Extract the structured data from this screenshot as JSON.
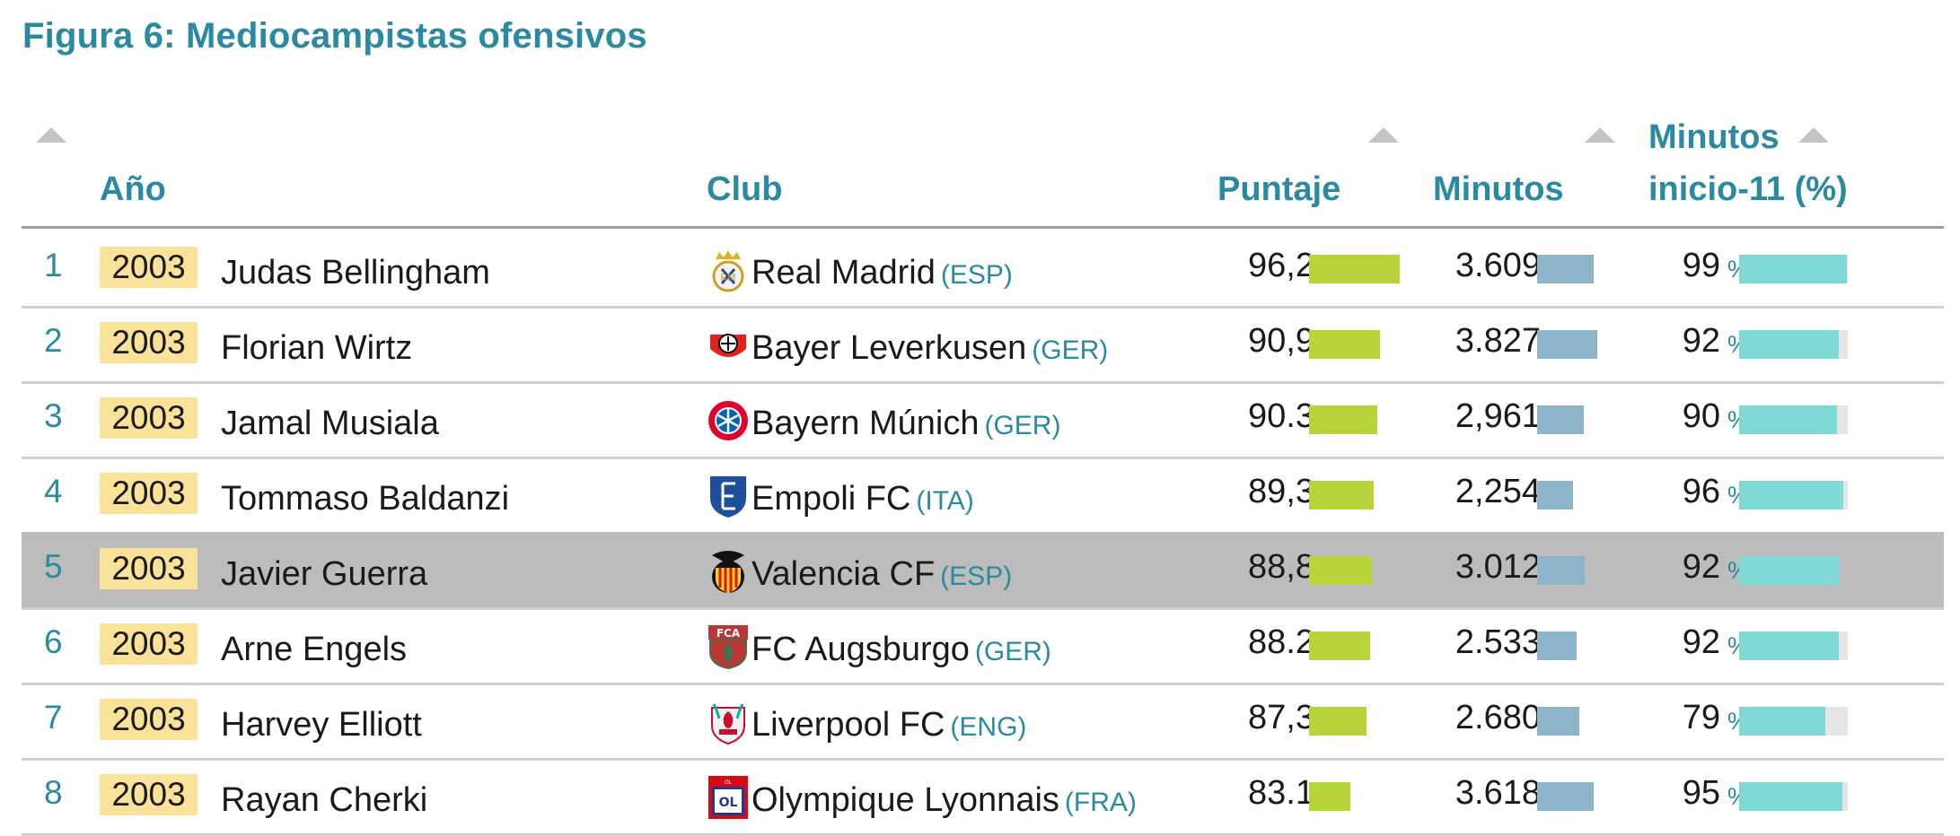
{
  "title": "Figura 6: Mediocampistas ofensivos",
  "headers": {
    "year": "Año",
    "club": "Club",
    "score": "Puntaje",
    "minutes": "Minutos",
    "start_line1": "Minutos",
    "start_line2": "inicio-11 (%)"
  },
  "icons": {
    "sort": "sort-up-triangle-icon"
  },
  "colors": {
    "accent": "#2a8aa2",
    "year_badge": "#fbe29a",
    "score_bar": "#b5d53a",
    "minutes_bar": "#8db4cb",
    "start_bar": "#7fd9d5",
    "highlight_row": "#bcbcbc"
  },
  "chart_data": {
    "type": "table",
    "title": "Figura 6: Mediocampistas ofensivos",
    "columns": [
      "",
      "Año",
      "",
      "Club",
      "Puntaje",
      "Minutos",
      "Minutos inicio-11 (%)"
    ],
    "rows": [
      {
        "rank": "1",
        "year": "2003",
        "player": "Judas Bellingham",
        "club": "Real Madrid",
        "country": "(ESP)",
        "logo": "real-madrid-crest-icon",
        "score_text": "96,2",
        "score": 96.2,
        "minutes_text": "3.609",
        "minutes": 3609,
        "start_text": "99",
        "start": 99,
        "highlighted": false
      },
      {
        "rank": "2",
        "year": "2003",
        "player": "Florian Wirtz",
        "club": "Bayer Leverkusen",
        "country": "(GER)",
        "logo": "bayer-leverkusen-crest-icon",
        "score_text": "90,9",
        "score": 90.9,
        "minutes_text": "3.827",
        "minutes": 3827,
        "start_text": "92",
        "start": 92,
        "highlighted": false
      },
      {
        "rank": "3",
        "year": "2003",
        "player": "Jamal Musiala",
        "club": "Bayern Múnich",
        "country": "(GER)",
        "logo": "bayern-munich-crest-icon",
        "score_text": "90.3",
        "score": 90.3,
        "minutes_text": "2,961",
        "minutes": 2961,
        "start_text": "90",
        "start": 90,
        "highlighted": false
      },
      {
        "rank": "4",
        "year": "2003",
        "player": "Tommaso Baldanzi",
        "club": "Empoli FC",
        "country": "(ITA)",
        "logo": "empoli-crest-icon",
        "score_text": "89,3",
        "score": 89.3,
        "minutes_text": "2,254",
        "minutes": 2254,
        "start_text": "96",
        "start": 96,
        "highlighted": false
      },
      {
        "rank": "5",
        "year": "2003",
        "player": "Javier Guerra",
        "club": "Valencia CF",
        "country": "(ESP)",
        "logo": "valencia-crest-icon",
        "score_text": "88,8",
        "score": 88.8,
        "minutes_text": "3.012",
        "minutes": 3012,
        "start_text": "92",
        "start": 92,
        "highlighted": true
      },
      {
        "rank": "6",
        "year": "2003",
        "player": "Arne Engels",
        "club": "FC Augsburgo",
        "country": "(GER)",
        "logo": "augsburg-crest-icon",
        "score_text": "88.2",
        "score": 88.2,
        "minutes_text": "2.533",
        "minutes": 2533,
        "start_text": "92",
        "start": 92,
        "highlighted": false
      },
      {
        "rank": "7",
        "year": "2003",
        "player": "Harvey Elliott",
        "club": "Liverpool FC",
        "country": "(ENG)",
        "logo": "liverpool-crest-icon",
        "score_text": "87,3",
        "score": 87.3,
        "minutes_text": "2.680",
        "minutes": 2680,
        "start_text": "79",
        "start": 79,
        "highlighted": false
      },
      {
        "rank": "8",
        "year": "2003",
        "player": "Rayan Cherki",
        "club": "Olympique Lyonnais",
        "country": "(FRA)",
        "logo": "lyon-crest-icon",
        "score_text": "83.1",
        "score": 83.1,
        "minutes_text": "3.618",
        "minutes": 3618,
        "start_text": "95",
        "start": 95,
        "highlighted": false
      }
    ],
    "pct_symbol": "%"
  }
}
